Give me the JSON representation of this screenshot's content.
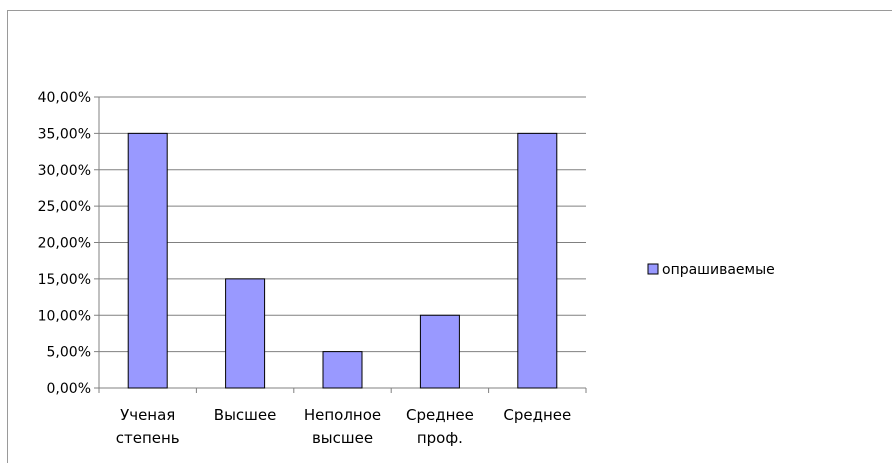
{
  "chart_data": {
    "type": "bar",
    "categories": [
      [
        "Ученая",
        "степень"
      ],
      [
        "Высшее"
      ],
      [
        "Неполное",
        "высшее"
      ],
      [
        "Среднее",
        "проф."
      ],
      [
        "Среднее"
      ]
    ],
    "series": [
      {
        "name": "опрашиваемые",
        "values": [
          35,
          15,
          5,
          10,
          35
        ],
        "color": "#9999ff"
      }
    ],
    "yticks": [
      "0,00%",
      "5,00%",
      "10,00%",
      "15,00%",
      "20,00%",
      "25,00%",
      "30,00%",
      "35,00%",
      "40,00%"
    ],
    "ylim": [
      0,
      40
    ],
    "grid": true,
    "legend_position": "right"
  }
}
